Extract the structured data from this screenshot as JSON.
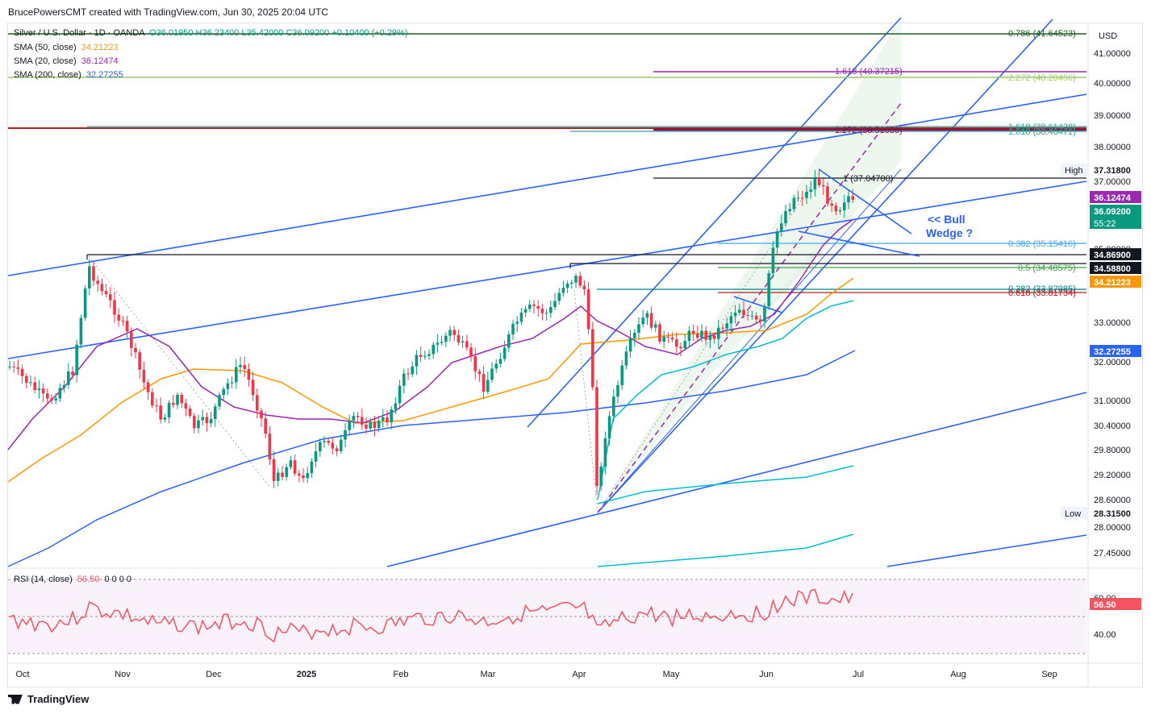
{
  "header": {
    "text": "BrucePowersCMT created with TradingView.com, Jun 30, 2025 20:04 UTC"
  },
  "legend": {
    "symbol": "Silver / U.S. Dollar · 1D · OANDA",
    "ohlc": "O36.01950 H36.23400 L35.42000 C36.09200 +0.10400 (+0.29%)",
    "sma50_label": "SMA (50, close)",
    "sma50_value": "34.21223",
    "sma20_label": "SMA (20, close)",
    "sma20_value": "36.12474",
    "sma200_label": "SMA (200, close)",
    "sma200_value": "32.27255",
    "rsi_label": "RSI (14, close)",
    "rsi_value": "56.50",
    "rsi_extra": "0 0 0 0"
  },
  "footer": {
    "brand": "TradingView"
  },
  "annotation": {
    "line1": "<< Bull",
    "line2": "Wedge ?"
  },
  "colors": {
    "up": "#089981",
    "down": "#f23645",
    "sma50": "#ff9800",
    "sma20": "#9c27b0",
    "sma200": "#2962ff",
    "channel": "#2962ff",
    "rsi": "#f7525f",
    "cyan": "#00bcd4"
  },
  "chart_data": {
    "type": "line",
    "title": "Silver / U.S. Dollar · 1D · OANDA",
    "currency": "USD",
    "y_axis": {
      "ticks": [
        "41.00000",
        "40.00000",
        "39.00000",
        "38.00000",
        "37.00000",
        "35.00000",
        "33.00000",
        "32.00000",
        "31.00000",
        "30.40000",
        "29.80000",
        "29.20000",
        "28.60000",
        "28.00000",
        "27.45000"
      ],
      "scale": "log"
    },
    "x_axis": {
      "ticks": [
        "Oct",
        "Nov",
        "Dec",
        "2025",
        "Feb",
        "Mar",
        "Apr",
        "May",
        "Jun",
        "Jul",
        "Aug",
        "Sep"
      ]
    },
    "price_labels": [
      {
        "label": "High",
        "value": "37.31800"
      },
      {
        "label": "",
        "value": "36.12474"
      },
      {
        "label": "",
        "value": "36.09200",
        "sub": "55:22"
      },
      {
        "label": "",
        "value": "34.86900"
      },
      {
        "label": "",
        "value": "34.58800"
      },
      {
        "label": "",
        "value": "34.21223"
      },
      {
        "label": "",
        "value": "32.27255"
      },
      {
        "label": "Low",
        "value": "28.31500"
      }
    ],
    "fib_labels": [
      {
        "text": "0.786 (41.64523)"
      },
      {
        "text": "1.618 (40.37215)"
      },
      {
        "text": "2.272 (40.20456)"
      },
      {
        "text": "1.618 (38.61438)"
      },
      {
        "text": "1.272 (38.51030)"
      },
      {
        "text": "1.618 (38.46471)"
      },
      {
        "text": "1 (37.04700)"
      },
      {
        "text": "0.382 (35.15416)"
      },
      {
        "text": "0.5 (34.48575)"
      },
      {
        "text": "0.382 (33.87985)"
      },
      {
        "text": "0.618 (33.81734)"
      }
    ],
    "series": [
      {
        "name": "Silver / U.S. Dollar",
        "ohlc_last": {
          "o": 36.0195,
          "h": 36.234,
          "l": 35.42,
          "c": 36.092
        }
      },
      {
        "name": "SMA (50, close)",
        "last": 34.21223
      },
      {
        "name": "SMA (20, close)",
        "last": 36.12474
      },
      {
        "name": "SMA (200, close)",
        "last": 32.27255
      }
    ],
    "rsi": {
      "ticks": [
        "60.00",
        "40.00"
      ],
      "last": 56.5
    }
  }
}
